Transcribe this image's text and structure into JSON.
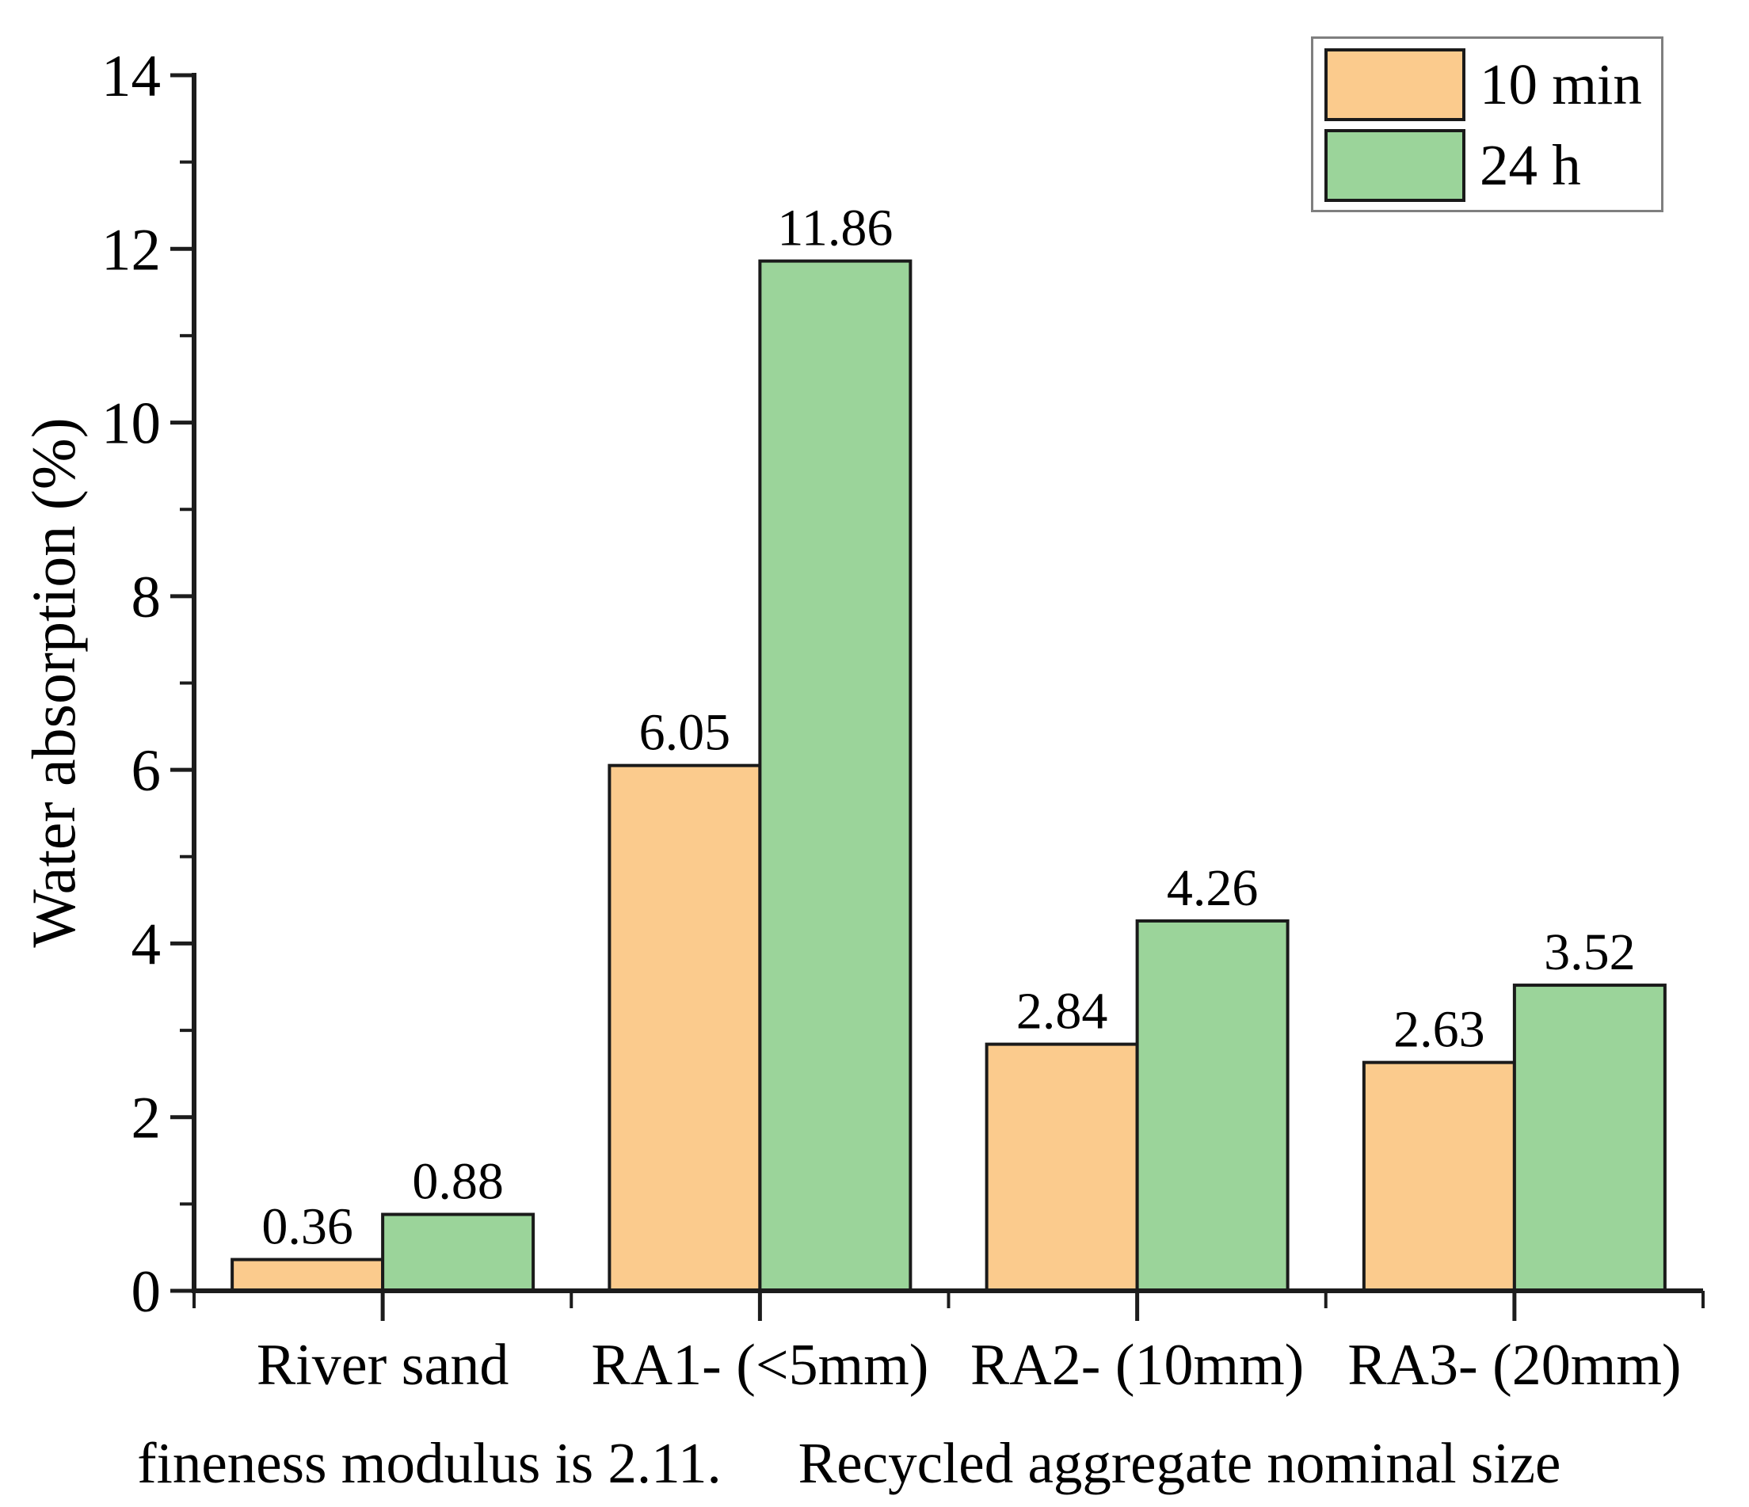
{
  "chart_data": {
    "type": "bar",
    "title": "",
    "categories": [
      "River sand",
      "RA1- (<5mm)",
      "RA2- (10mm)",
      "RA3- (20mm)"
    ],
    "series": [
      {
        "name": "10 min",
        "color": "#FBCB8D",
        "values": [
          0.36,
          6.05,
          2.84,
          2.63
        ]
      },
      {
        "name": "24 h",
        "color": "#9BD49A",
        "values": [
          0.88,
          11.86,
          4.26,
          3.52
        ]
      }
    ],
    "ylabel": "Water absorption (%)",
    "xlabel": "Recycled aggregate nominal size",
    "footnote": "fineness modulus is 2.11.",
    "ylim": [
      0,
      14
    ],
    "y_major_step": 2,
    "y_minor_step": 1,
    "y_tick_labels": [
      "0",
      "2",
      "4",
      "6",
      "8",
      "10",
      "12",
      "14"
    ],
    "value_label_decimals": 2,
    "grid": false,
    "legend_position": "top-right",
    "colors": {
      "axis": "#1c1c1c",
      "bar_edge": "#1a1a1a",
      "legend_border": "#7f7f7f",
      "background": "#ffffff",
      "text": "#000000"
    }
  }
}
